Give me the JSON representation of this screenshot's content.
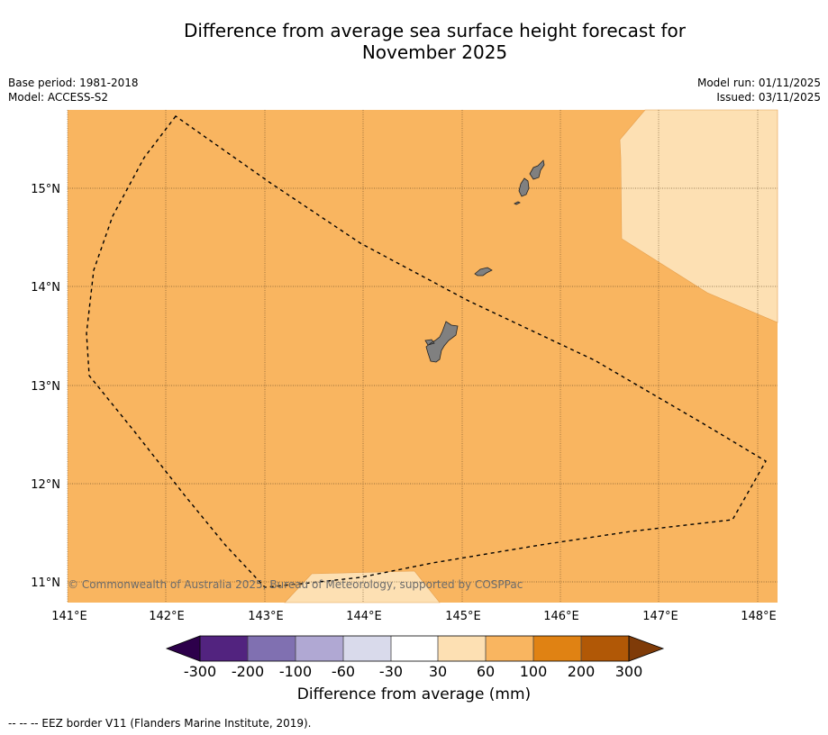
{
  "title": {
    "line1": "Difference from average sea surface height forecast for",
    "line2": "November 2025"
  },
  "meta": {
    "base_period": "Base period: 1981-2018",
    "model": "Model: ACCESS-S2",
    "model_run": "Model run: 01/11/2025",
    "issued": "Issued: 03/11/2025"
  },
  "map": {
    "lon_labels": [
      "141°E",
      "142°E",
      "143°E",
      "144°E",
      "145°E",
      "146°E",
      "147°E",
      "148°E"
    ],
    "lat_labels": [
      "15°N",
      "14°N",
      "13°N",
      "12°N",
      "11°N"
    ],
    "copyright": "© Commonwealth of Australia 2025, Bureau of Meteorology, supported by COSPPac",
    "background_color": "#f9b560",
    "light_color": "#fde0b3",
    "land_color": "#808080"
  },
  "colorbar": {
    "tick_labels": [
      "-300",
      "-200",
      "-100",
      "-60",
      "-30",
      "30",
      "60",
      "100",
      "200",
      "300"
    ],
    "colors": [
      "#52237f",
      "#8070b1",
      "#b0a8d3",
      "#d9daeb",
      "#ffffff",
      "#fde0b3",
      "#f9b560",
      "#e08213",
      "#b15806"
    ],
    "under_color": "#2d004b",
    "over_color": "#7f3b08",
    "label": "Difference from average (mm)"
  },
  "footer": "--  --  -- EEZ border V11 (Flanders Marine Institute, 2019)."
}
